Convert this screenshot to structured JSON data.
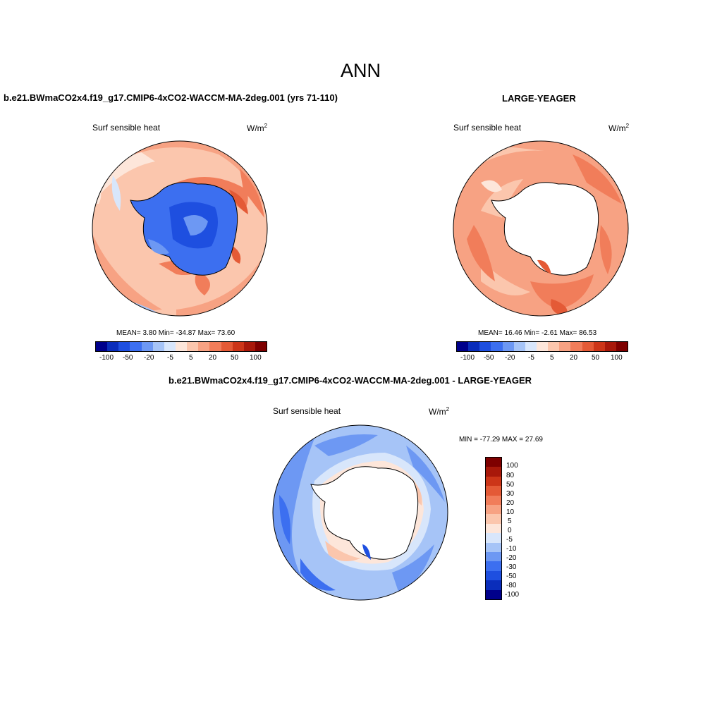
{
  "page": {
    "title": "ANN"
  },
  "panels": [
    {
      "title": "b.e21.BWmaCO2x4.f19_g17.CMIP6-4xCO2-WACCM-MA-2deg.001 (yrs 71-110)",
      "variable": "Surf sensible heat",
      "units_base": "W/m",
      "units_exp": "2",
      "stats": "MEAN=   3.80  Min= -34.87  Max=  73.60",
      "colorbar_labels": [
        "-100",
        "-50",
        "-20",
        "-5",
        "5",
        "20",
        "50",
        "100"
      ]
    },
    {
      "title": "LARGE-YEAGER",
      "variable": "Surf sensible heat",
      "units_base": "W/m",
      "units_exp": "2",
      "stats": "MEAN=  16.46  Min=  -2.61  Max=  86.53",
      "colorbar_labels": [
        "-100",
        "-50",
        "-20",
        "-5",
        "5",
        "20",
        "50",
        "100"
      ]
    },
    {
      "title": "b.e21.BWmaCO2x4.f19_g17.CMIP6-4xCO2-WACCM-MA-2deg.001 - LARGE-YEAGER",
      "variable": "Surf sensible heat",
      "units_base": "W/m",
      "units_exp": "2",
      "stats": "MIN = -77.29 MAX =  27.69",
      "colorbar_labels": [
        "100",
        "80",
        "50",
        "30",
        "20",
        "10",
        "5",
        "0",
        "-5",
        "-10",
        "-20",
        "-30",
        "-50",
        "-80",
        "-100"
      ]
    }
  ],
  "colors": {
    "scale_top_panels": [
      "#00008b",
      "#0a2dbb",
      "#1e4fe0",
      "#3c6ff0",
      "#6d98f3",
      "#a6c4f7",
      "#d8e6fb",
      "#fde6da",
      "#fbc6ad",
      "#f7a283",
      "#f17d5a",
      "#e45a36",
      "#cc3518",
      "#a8180a",
      "#7e0000"
    ],
    "scale_diff_top_to_bottom": [
      "#7e0000",
      "#a8180a",
      "#cc3518",
      "#e45a36",
      "#f17d5a",
      "#f7a283",
      "#fbc6ad",
      "#fde6da",
      "#d8e6fb",
      "#a6c4f7",
      "#6d98f3",
      "#3c6ff0",
      "#1e4fe0",
      "#0a2dbb",
      "#00008b"
    ]
  }
}
